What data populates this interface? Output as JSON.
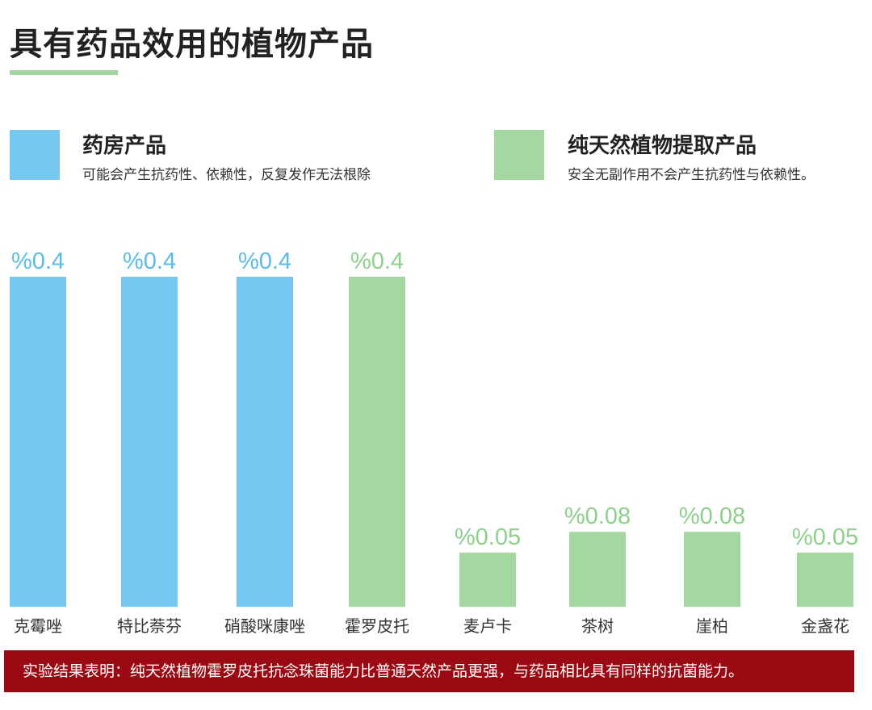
{
  "chart_data": {
    "type": "bar",
    "title": "具有药品效用的植物产品",
    "categories": [
      "克霉唑",
      "特比萘芬",
      "硝酸咪康唑",
      "霍罗皮托",
      "麦卢卡",
      "茶树",
      "崖柏",
      "金盏花"
    ],
    "values": [
      0.4,
      0.4,
      0.4,
      0.4,
      0.05,
      0.08,
      0.08,
      0.05
    ],
    "value_labels": [
      "%0.4",
      "%0.4",
      "%0.4",
      "%0.4",
      "%0.05",
      "%0.08",
      "%0.08",
      "%0.05"
    ],
    "groups": [
      "pharmacy",
      "pharmacy",
      "pharmacy",
      "natural",
      "natural",
      "natural",
      "natural",
      "natural"
    ],
    "ylim": [
      0,
      0.4
    ],
    "xlabel": "",
    "ylabel": "",
    "grid": false,
    "legend": [
      {
        "key": "pharmacy",
        "title": "药房产品",
        "desc": "可能会产生抗药性、依赖性，反复发作无法根除",
        "color": "#76c7f0"
      },
      {
        "key": "natural",
        "title": "纯天然植物提取产品",
        "desc": "安全无副作用不会产生抗药性与依赖性。",
        "color": "#a3d8a0"
      }
    ],
    "legend_position": "top"
  },
  "footer": {
    "text": "实验结果表明：纯天然植物霍罗皮托抗念珠菌能力比普通天然产品更强，与药品相比具有同样的抗菌能力。",
    "color": "#9b0a13"
  }
}
